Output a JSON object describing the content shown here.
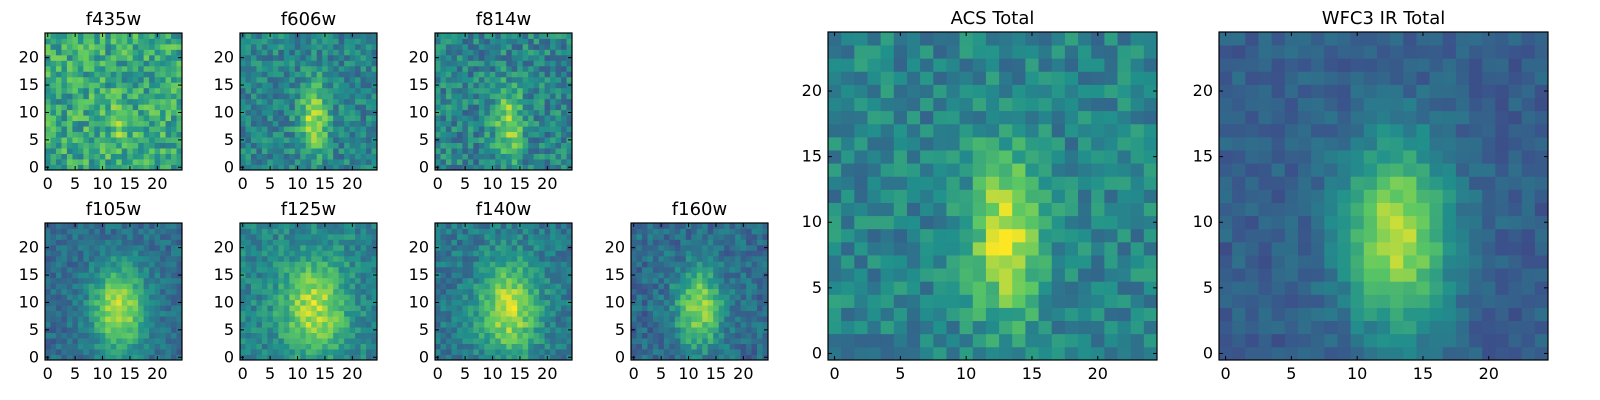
{
  "figure": {
    "colormap": [
      "#440154",
      "#3b528b",
      "#21918c",
      "#5ec962",
      "#fde725"
    ],
    "background": "#ffffff"
  },
  "chart_data": [
    {
      "type": "heatmap",
      "title": "f435w",
      "grid": [
        25,
        25
      ],
      "xticks": [
        0,
        5,
        10,
        15,
        20
      ],
      "yticks": [
        0,
        5,
        10,
        15,
        20
      ],
      "xlim": [
        -0.5,
        24.5
      ],
      "ylim": [
        -0.5,
        24.5
      ],
      "source": {
        "center": [
          13,
          8
        ],
        "width": [
          1.5,
          3.5
        ],
        "peak": 0.15
      },
      "noise": 0.2,
      "base": 0.6,
      "seed": 11
    },
    {
      "type": "heatmap",
      "title": "f606w",
      "grid": [
        25,
        25
      ],
      "xticks": [
        0,
        5,
        10,
        15,
        20
      ],
      "yticks": [
        0,
        5,
        10,
        15,
        20
      ],
      "xlim": [
        -0.5,
        24.5
      ],
      "ylim": [
        -0.5,
        24.5
      ],
      "source": {
        "center": [
          13,
          9
        ],
        "width": [
          1.8,
          4.5
        ],
        "peak": 0.45
      },
      "noise": 0.15,
      "base": 0.45,
      "seed": 23
    },
    {
      "type": "heatmap",
      "title": "f814w",
      "grid": [
        25,
        25
      ],
      "xticks": [
        0,
        5,
        10,
        15,
        20
      ],
      "yticks": [
        0,
        5,
        10,
        15,
        20
      ],
      "xlim": [
        -0.5,
        24.5
      ],
      "ylim": [
        -0.5,
        24.5
      ],
      "source": {
        "center": [
          13,
          8
        ],
        "width": [
          1.8,
          4.5
        ],
        "peak": 0.4
      },
      "noise": 0.17,
      "base": 0.45,
      "seed": 37
    },
    {
      "type": "heatmap",
      "title": "f105w",
      "grid": [
        25,
        25
      ],
      "xticks": [
        0,
        5,
        10,
        15,
        20
      ],
      "yticks": [
        0,
        5,
        10,
        15,
        20
      ],
      "xlim": [
        -0.5,
        24.5
      ],
      "ylim": [
        -0.5,
        24.5
      ],
      "source": {
        "center": [
          13,
          9
        ],
        "width": [
          3.5,
          5.5
        ],
        "peak": 0.55
      },
      "noise": 0.1,
      "base": 0.35,
      "seed": 41
    },
    {
      "type": "heatmap",
      "title": "f125w",
      "grid": [
        25,
        25
      ],
      "xticks": [
        0,
        5,
        10,
        15,
        20
      ],
      "yticks": [
        0,
        5,
        10,
        15,
        20
      ],
      "xlim": [
        -0.5,
        24.5
      ],
      "ylim": [
        -0.5,
        24.5
      ],
      "source": {
        "center": [
          13,
          9
        ],
        "width": [
          4,
          6
        ],
        "peak": 0.45
      },
      "noise": 0.12,
      "base": 0.45,
      "seed": 53
    },
    {
      "type": "heatmap",
      "title": "f140w",
      "grid": [
        25,
        25
      ],
      "xticks": [
        0,
        5,
        10,
        15,
        20
      ],
      "yticks": [
        0,
        5,
        10,
        15,
        20
      ],
      "xlim": [
        -0.5,
        24.5
      ],
      "ylim": [
        -0.5,
        24.5
      ],
      "source": {
        "center": [
          13,
          9
        ],
        "width": [
          3.8,
          6
        ],
        "peak": 0.5
      },
      "noise": 0.12,
      "base": 0.4,
      "seed": 67
    },
    {
      "type": "heatmap",
      "title": "f160w",
      "grid": [
        25,
        25
      ],
      "xticks": [
        0,
        5,
        10,
        15,
        20
      ],
      "yticks": [
        0,
        5,
        10,
        15,
        20
      ],
      "xlim": [
        -0.5,
        24.5
      ],
      "ylim": [
        -0.5,
        24.5
      ],
      "source": {
        "center": [
          12,
          9
        ],
        "width": [
          3,
          5
        ],
        "peak": 0.5
      },
      "noise": 0.12,
      "base": 0.35,
      "seed": 79
    },
    {
      "type": "heatmap",
      "title": "ACS Total",
      "grid": [
        25,
        25
      ],
      "xticks": [
        0,
        5,
        10,
        15,
        20
      ],
      "yticks": [
        0,
        5,
        10,
        15,
        20
      ],
      "xlim": [
        -0.5,
        24.5
      ],
      "ylim": [
        -0.5,
        24.5
      ],
      "source": {
        "center": [
          13,
          9
        ],
        "width": [
          1.8,
          4.5
        ],
        "peak": 0.5
      },
      "noise": 0.13,
      "base": 0.45,
      "seed": 97
    },
    {
      "type": "heatmap",
      "title": "WFC3 IR Total",
      "grid": [
        25,
        25
      ],
      "xticks": [
        0,
        5,
        10,
        15,
        20
      ],
      "yticks": [
        0,
        5,
        10,
        15,
        20
      ],
      "xlim": [
        -0.5,
        24.5
      ],
      "ylim": [
        -0.5,
        24.5
      ],
      "source": {
        "center": [
          13,
          9
        ],
        "width": [
          2.8,
          5
        ],
        "peak": 0.6
      },
      "noise": 0.07,
      "base": 0.3,
      "seed": 131
    }
  ]
}
